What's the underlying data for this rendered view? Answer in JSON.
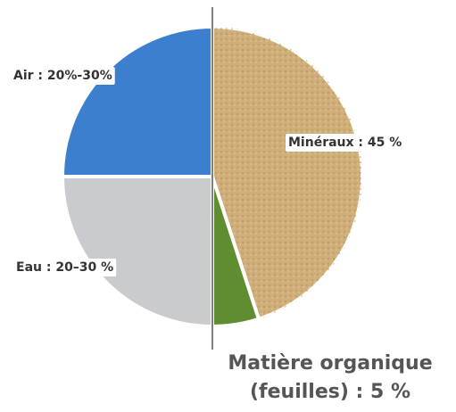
{
  "chart_data": {
    "type": "pie",
    "labels": [
      "Minéraux : 45 %",
      [
        "Matière organique",
        "(feuilles) : 5 %"
      ],
      "Eau : 20–30 %",
      "Air : 20%-30%"
    ],
    "values": [
      45,
      5,
      25,
      25
    ],
    "colors": [
      "#cfae7a",
      "#5f8d30",
      "#c9cbcf",
      "#3d7fcf"
    ]
  }
}
